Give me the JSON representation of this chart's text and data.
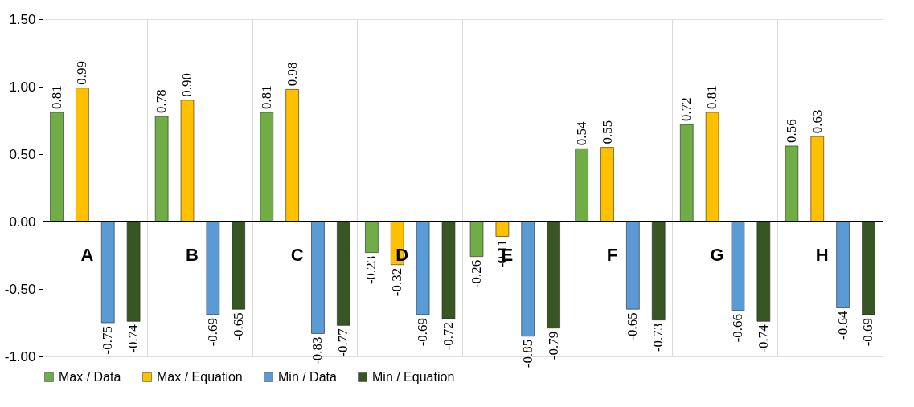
{
  "chart_data": {
    "type": "bar",
    "categories": [
      "A",
      "B",
      "C",
      "D",
      "E",
      "F",
      "G",
      "H"
    ],
    "series": [
      {
        "name": "Max / Data",
        "color": "#70ad47",
        "values": [
          0.81,
          0.78,
          0.81,
          -0.23,
          -0.26,
          0.54,
          0.72,
          0.56
        ]
      },
      {
        "name": "Max / Equation",
        "color": "#ffc000",
        "values": [
          0.99,
          0.9,
          0.98,
          -0.32,
          -0.11,
          0.55,
          0.81,
          0.63
        ]
      },
      {
        "name": "Min / Data",
        "color": "#5b9bd5",
        "values": [
          -0.75,
          -0.69,
          -0.83,
          -0.69,
          -0.85,
          -0.65,
          -0.66,
          -0.64
        ]
      },
      {
        "name": "Min / Equation",
        "color": "#375623",
        "values": [
          -0.74,
          -0.65,
          -0.77,
          -0.72,
          -0.79,
          -0.73,
          -0.74,
          -0.69
        ]
      }
    ],
    "ylim": [
      -1,
      1.5
    ],
    "yticks": [
      {
        "value": -1,
        "label": "-1.00"
      },
      {
        "value": -0.5,
        "label": "-0.50"
      },
      {
        "value": 0,
        "label": "0.00"
      },
      {
        "value": 0.5,
        "label": "0.50"
      },
      {
        "value": 1,
        "label": "1.00"
      },
      {
        "value": 1.5,
        "label": "1.50"
      }
    ],
    "grid": "x",
    "legend": "bottom",
    "value_labels": [
      [
        "0.81",
        "0.78",
        "0.81",
        "-0.23",
        "-0.26",
        "0.54",
        "0.72",
        "0.56"
      ],
      [
        "0.99",
        "0.90",
        "0.98",
        "-0.32",
        "-0.11",
        "0.55",
        "0.81",
        "0.63"
      ],
      [
        "-0.75",
        "-0.69",
        "-0.83",
        "-0.69",
        "-0.85",
        "-0.65",
        "-0.66",
        "-0.64"
      ],
      [
        "-0.74",
        "-0.65",
        "-0.77",
        "-0.72",
        "-0.79",
        "-0.73",
        "-0.74",
        "-0.69"
      ]
    ]
  }
}
